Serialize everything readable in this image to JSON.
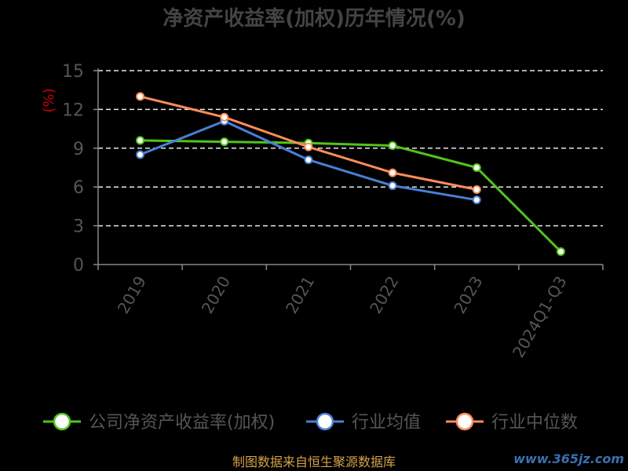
{
  "chart_data": {
    "type": "line",
    "title": "净资产收益率(加权)历年情况(%)",
    "ylabel": "(%)",
    "categories": [
      "2019",
      "2020",
      "2021",
      "2022",
      "2023",
      "2024Q1-Q3"
    ],
    "yticks": [
      "0",
      "3",
      "6",
      "9",
      "12",
      "15"
    ],
    "ylim": [
      0,
      15
    ],
    "grid": true,
    "legend_position": "bottom",
    "series": [
      {
        "name": "公司净资产收益率(加权)",
        "color": "#52c41a",
        "values": [
          9.6,
          9.5,
          9.4,
          9.2,
          7.5,
          1.0
        ]
      },
      {
        "name": "行业均值",
        "color": "#4a7fd6",
        "values": [
          8.5,
          11.1,
          8.1,
          6.1,
          5.0,
          null
        ]
      },
      {
        "name": "行业中位数",
        "color": "#ff8c5a",
        "values": [
          13.0,
          11.4,
          9.1,
          7.1,
          5.8,
          null
        ]
      }
    ]
  },
  "footer": {
    "source": "制图数据来自恒生聚源数据库",
    "watermark": "www.365jz.com"
  }
}
